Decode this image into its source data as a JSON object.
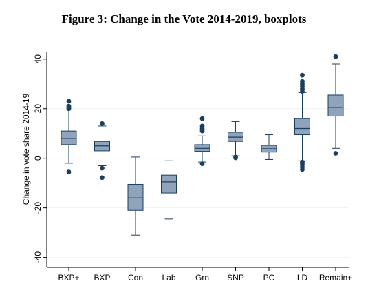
{
  "title": "Figure 3: Change in the Vote 2014-2019, boxplots",
  "chart_data": {
    "type": "box",
    "title": "Figure 3: Change in the Vote 2014-2019, boxplots",
    "xlabel": "",
    "ylabel": "Change in vote share 2014-19",
    "ylim": [
      -44,
      43
    ],
    "yticks": [
      -40,
      -20,
      0,
      20,
      40
    ],
    "grid": true,
    "colors": {
      "box": "#8fa3bb",
      "line": "#1b3f5f",
      "outlier": "#1b3f5f",
      "grid": "#eef2f6"
    },
    "categories": [
      "BXP+",
      "BXP",
      "Con",
      "Lab",
      "Grn",
      "SNP",
      "PC",
      "LD",
      "Remain+"
    ],
    "boxes": [
      {
        "label": "BXP+",
        "whisker_low": -2,
        "q1": 5.5,
        "median": 8,
        "q3": 11,
        "whisker_high": 19.5,
        "outliers": [
          -5.5,
          20,
          20.5,
          21,
          23
        ]
      },
      {
        "label": "BXP",
        "whisker_low": -3,
        "q1": 3,
        "median": 5,
        "q3": 6.8,
        "whisker_high": 13,
        "outliers": [
          -4,
          -7.8,
          14
        ]
      },
      {
        "label": "Con",
        "whisker_low": -31,
        "q1": -21,
        "median": -16,
        "q3": -10.5,
        "whisker_high": 0.5,
        "outliers": []
      },
      {
        "label": "Lab",
        "whisker_low": -24.5,
        "q1": -14,
        "median": -9.5,
        "q3": -6.8,
        "whisker_high": -1,
        "outliers": []
      },
      {
        "label": "Grn",
        "whisker_low": -1.5,
        "q1": 2.8,
        "median": 4,
        "q3": 5.5,
        "whisker_high": 9,
        "outliers": [
          -2.2,
          11,
          12,
          13,
          16
        ]
      },
      {
        "label": "SNP",
        "whisker_low": 1,
        "q1": 6.8,
        "median": 8.5,
        "q3": 10.5,
        "whisker_high": 14.8,
        "outliers": [
          0.5,
          0.2
        ]
      },
      {
        "label": "PC",
        "whisker_low": -0.5,
        "q1": 2.5,
        "median": 3.8,
        "q3": 5.2,
        "whisker_high": 9.5,
        "outliers": []
      },
      {
        "label": "LD",
        "whisker_low": -1,
        "q1": 9.5,
        "median": 12,
        "q3": 16,
        "whisker_high": 26.5,
        "outliers": [
          -1.5,
          -2.5,
          -3.5,
          -4.5,
          27,
          28,
          29,
          30,
          31,
          33.5
        ]
      },
      {
        "label": "Remain+",
        "whisker_low": 4,
        "q1": 17,
        "median": 20.5,
        "q3": 25.5,
        "whisker_high": 38,
        "outliers": [
          2,
          41
        ]
      }
    ]
  }
}
